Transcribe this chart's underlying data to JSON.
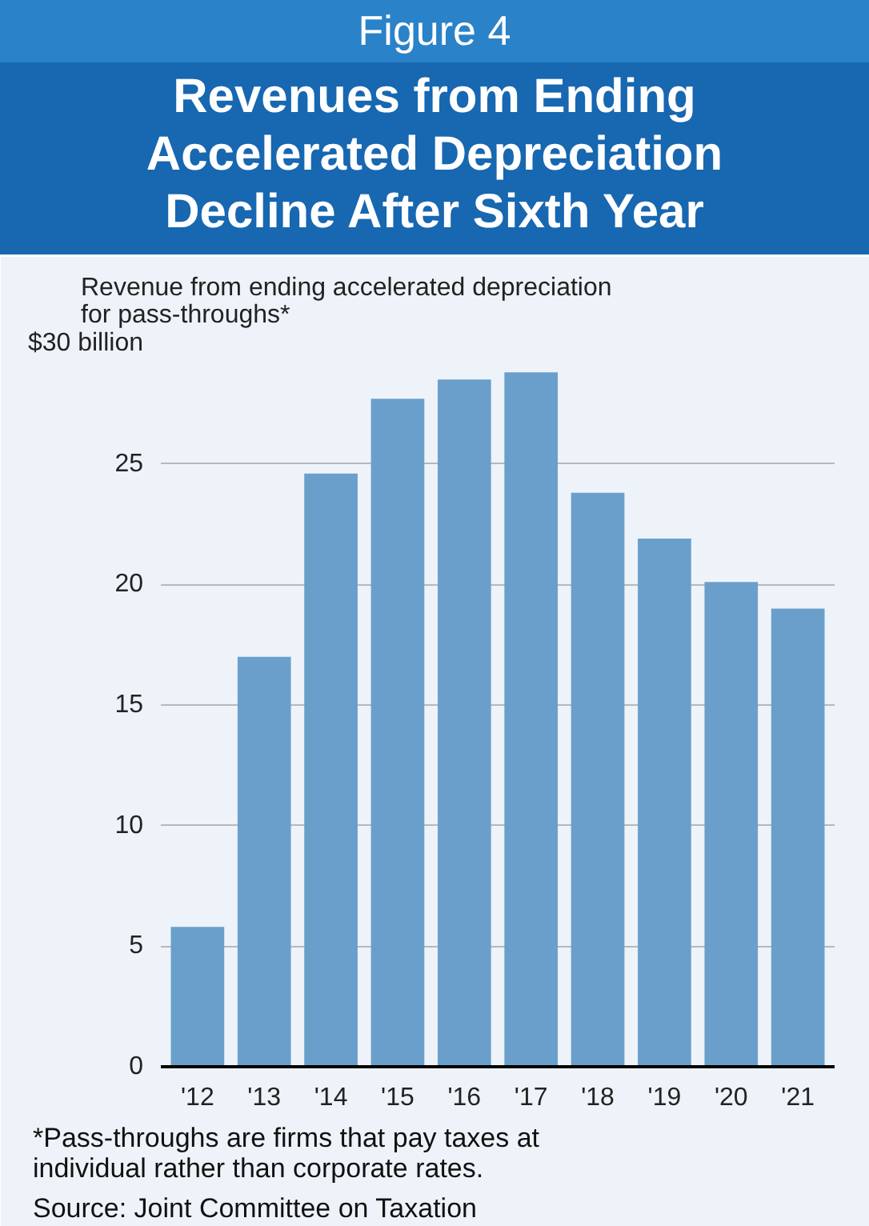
{
  "chart_data": {
    "type": "bar",
    "title": "Figure 4",
    "subtitle": "Revenues from Ending Accelerated Depreciation Decline After Sixth Year",
    "ylabel": "Revenue from ending accelerated depreciation\nfor pass-throughs*",
    "categories": [
      "'12",
      "'13",
      "'14",
      "'15",
      "'16",
      "'17",
      "'18",
      "'19",
      "'20",
      "'21"
    ],
    "values": [
      5.8,
      17.0,
      24.6,
      27.7,
      28.5,
      28.8,
      23.8,
      21.9,
      20.1,
      19.0
    ],
    "color": "#6a9fcb",
    "ylim": [
      0,
      30
    ],
    "yticks": [
      0,
      5,
      10,
      15,
      20,
      {
        "value": 30,
        "label": "$30 billion"
      },
      25
    ],
    "grid": "y",
    "annotations": [
      "*Pass-throughs are firms that pay taxes at individual rather than corporate rates.",
      "Source: Joint Committee on Taxation"
    ]
  }
}
